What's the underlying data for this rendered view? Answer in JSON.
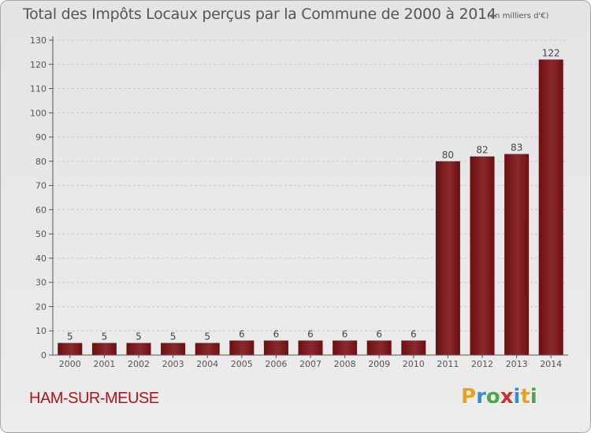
{
  "chart_data": {
    "type": "bar",
    "title": "Total des Impôts Locaux perçus par la Commune de 2000 à 2014",
    "unit": "(en milliers d'€)",
    "categories": [
      "2000",
      "2001",
      "2002",
      "2003",
      "2004",
      "2005",
      "2006",
      "2007",
      "2008",
      "2009",
      "2010",
      "2011",
      "2012",
      "2013",
      "2014"
    ],
    "values": [
      5,
      5,
      5,
      5,
      5,
      6,
      6,
      6,
      6,
      6,
      6,
      80,
      82,
      83,
      122
    ],
    "ylim": [
      0,
      130
    ],
    "yticks": [
      0,
      10,
      20,
      30,
      40,
      50,
      60,
      70,
      80,
      90,
      100,
      110,
      120,
      130
    ],
    "xlabel": "",
    "ylabel": "",
    "bar_color": "#6b0f12",
    "bar_color_light": "#8a2a2e"
  },
  "commune": "HAM-SUR-MEUSE",
  "logo": {
    "letters": [
      "P",
      "r",
      "o",
      "x",
      "i",
      "t",
      "i"
    ],
    "colors": [
      "#f0a020",
      "#3a8ad0",
      "#4aa84a",
      "#d03030",
      "#3a8ad0",
      "#f0a020",
      "#4aa84a"
    ]
  }
}
